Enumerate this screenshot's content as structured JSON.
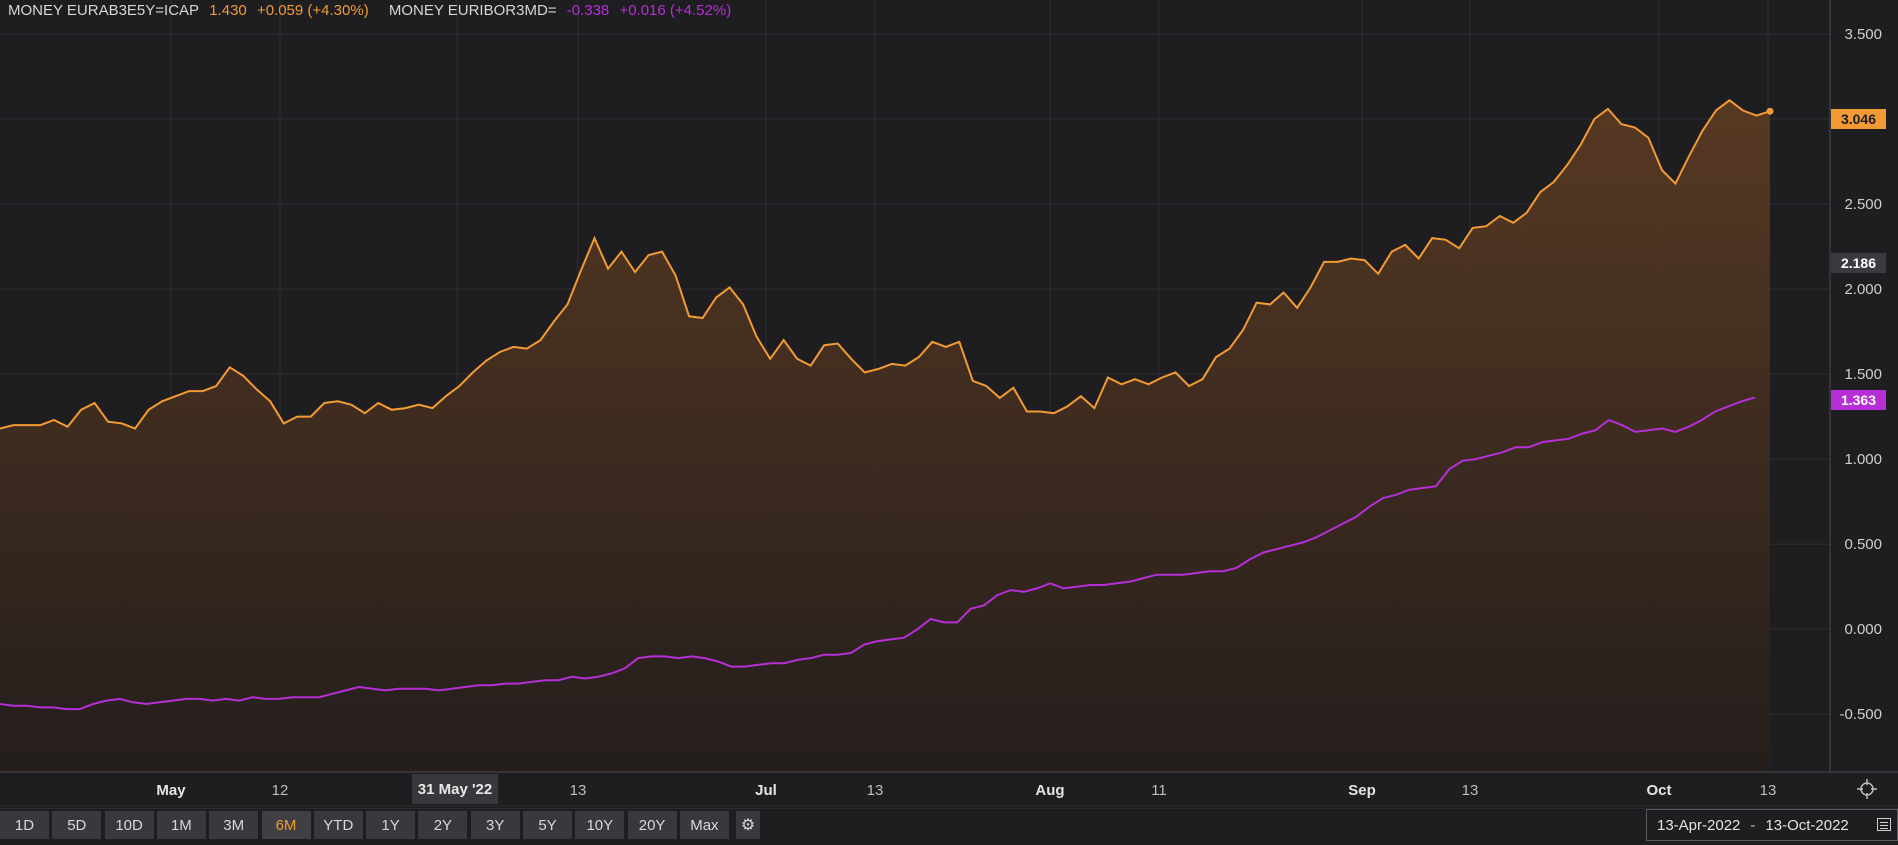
{
  "legend": {
    "series1": {
      "name": "MONEY EURAB3E5Y=ICAP",
      "last": "1.430",
      "change": "+0.059 (+4.30%)"
    },
    "series2": {
      "name": "MONEY EURIBOR3MD=",
      "last": "-0.338",
      "change": "+0.016 (+4.52%)"
    }
  },
  "chart_data": {
    "type": "line",
    "x_labels": [
      "May",
      "12",
      "31 May '22",
      "13",
      "Jul",
      "13",
      "Aug",
      "11",
      "Sep",
      "13",
      "Oct",
      "13"
    ],
    "y_ticks": [
      "3.500",
      "2.500",
      "2.000",
      "1.500",
      "1.000",
      "0.500",
      "0.000",
      "-0.500"
    ],
    "ylim": [
      -0.84,
      3.7
    ],
    "grid": true,
    "highlighted_x_label": "31 May '22",
    "price_labels": {
      "orange": "3.046",
      "middle": "2.186",
      "purple": "1.363"
    },
    "series": [
      {
        "name": "MONEY EURAB3E5Y=ICAP",
        "color": "#f39a34",
        "fill": true,
        "values": [
          1.18,
          1.2,
          1.2,
          1.2,
          1.23,
          1.19,
          1.29,
          1.33,
          1.22,
          1.21,
          1.18,
          1.29,
          1.34,
          1.37,
          1.4,
          1.4,
          1.43,
          1.54,
          1.49,
          1.41,
          1.34,
          1.21,
          1.25,
          1.25,
          1.33,
          1.34,
          1.32,
          1.27,
          1.33,
          1.29,
          1.3,
          1.32,
          1.3,
          1.37,
          1.43,
          1.51,
          1.58,
          1.63,
          1.66,
          1.65,
          1.7,
          1.81,
          1.91,
          2.11,
          2.3,
          2.12,
          2.22,
          2.1,
          2.2,
          2.22,
          2.08,
          1.84,
          1.83,
          1.95,
          2.01,
          1.91,
          1.72,
          1.59,
          1.7,
          1.59,
          1.55,
          1.67,
          1.68,
          1.59,
          1.51,
          1.53,
          1.56,
          1.55,
          1.6,
          1.69,
          1.66,
          1.69,
          1.46,
          1.43,
          1.36,
          1.42,
          1.28,
          1.28,
          1.27,
          1.31,
          1.37,
          1.3,
          1.48,
          1.44,
          1.47,
          1.44,
          1.48,
          1.51,
          1.43,
          1.47,
          1.6,
          1.65,
          1.76,
          1.92,
          1.91,
          1.98,
          1.89,
          2.01,
          2.16,
          2.16,
          2.18,
          2.17,
          2.09,
          2.22,
          2.26,
          2.18,
          2.3,
          2.29,
          2.24,
          2.36,
          2.37,
          2.43,
          2.39,
          2.45,
          2.57,
          2.63,
          2.73,
          2.85,
          3.0,
          3.06,
          2.97,
          2.95,
          2.89,
          2.7,
          2.62,
          2.78,
          2.93,
          3.05,
          3.11,
          3.05,
          3.02,
          3.046
        ]
      },
      {
        "name": "MONEY EURIBOR3MD=",
        "color": "#b62fd6",
        "fill": false,
        "values": [
          -0.44,
          -0.45,
          -0.45,
          -0.46,
          -0.46,
          -0.47,
          -0.47,
          -0.44,
          -0.42,
          -0.41,
          -0.43,
          -0.44,
          -0.43,
          -0.42,
          -0.41,
          -0.41,
          -0.42,
          -0.41,
          -0.42,
          -0.4,
          -0.41,
          -0.41,
          -0.4,
          -0.4,
          -0.4,
          -0.38,
          -0.36,
          -0.34,
          -0.35,
          -0.36,
          -0.35,
          -0.35,
          -0.35,
          -0.36,
          -0.35,
          -0.34,
          -0.33,
          -0.33,
          -0.32,
          -0.32,
          -0.31,
          -0.3,
          -0.3,
          -0.28,
          -0.29,
          -0.28,
          -0.26,
          -0.23,
          -0.17,
          -0.16,
          -0.16,
          -0.17,
          -0.16,
          -0.17,
          -0.19,
          -0.22,
          -0.22,
          -0.21,
          -0.2,
          -0.2,
          -0.18,
          -0.17,
          -0.15,
          -0.15,
          -0.14,
          -0.09,
          -0.07,
          -0.06,
          -0.05,
          0.0,
          0.06,
          0.04,
          0.04,
          0.12,
          0.14,
          0.2,
          0.23,
          0.22,
          0.24,
          0.27,
          0.24,
          0.25,
          0.26,
          0.26,
          0.27,
          0.28,
          0.3,
          0.32,
          0.32,
          0.32,
          0.33,
          0.34,
          0.34,
          0.36,
          0.41,
          0.45,
          0.47,
          0.49,
          0.51,
          0.54,
          0.58,
          0.62,
          0.66,
          0.72,
          0.77,
          0.79,
          0.82,
          0.83,
          0.84,
          0.94,
          0.99,
          1.0,
          1.02,
          1.04,
          1.07,
          1.07,
          1.1,
          1.11,
          1.12,
          1.15,
          1.17,
          1.23,
          1.2,
          1.16,
          1.17,
          1.18,
          1.16,
          1.19,
          1.23,
          1.28,
          1.31,
          1.34,
          1.363
        ]
      }
    ]
  },
  "ranges": [
    "1D",
    "5D",
    "10D",
    "1M",
    "3M",
    "6M",
    "YTD",
    "1Y",
    "2Y",
    "3Y",
    "5Y",
    "10Y",
    "20Y",
    "Max"
  ],
  "active_range": "6M",
  "date_from": "13-Apr-2022",
  "date_sep": "-",
  "date_to": "13-Oct-2022",
  "colors": {
    "background": "#1e1e21",
    "grid": "#2e2e32",
    "orange": "#f39a34",
    "purple": "#b62fd6"
  }
}
